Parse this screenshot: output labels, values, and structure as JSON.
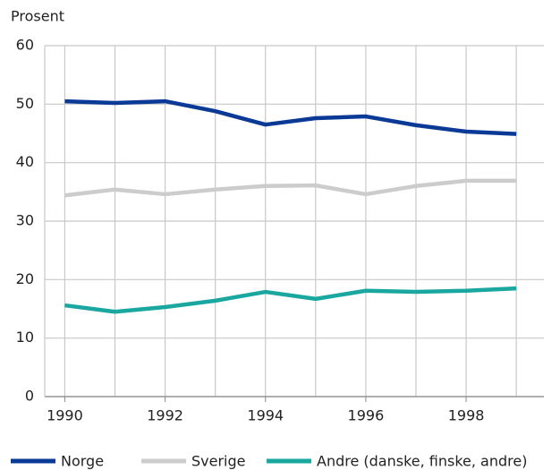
{
  "chart_data": {
    "type": "line",
    "y_axis_label": "Prosent",
    "x": [
      1990,
      1991,
      1992,
      1993,
      1994,
      1995,
      1996,
      1997,
      1998,
      1999
    ],
    "series": [
      {
        "name": "Norge",
        "color": "#0a3a96",
        "values": [
          50.5,
          50.2,
          50.5,
          48.8,
          46.5,
          47.6,
          47.9,
          46.4,
          45.3,
          44.9
        ]
      },
      {
        "name": "Sverige",
        "color": "#cccccc",
        "values": [
          34.4,
          35.4,
          34.6,
          35.4,
          36.0,
          36.1,
          34.6,
          36.0,
          36.9,
          36.9
        ]
      },
      {
        "name": "Andre (danske, finske, andre)",
        "color": "#1aa7a0",
        "values": [
          15.6,
          14.5,
          15.3,
          16.4,
          17.9,
          16.7,
          18.1,
          17.9,
          18.1,
          18.5
        ]
      }
    ],
    "xlim": [
      1989.6,
      1999.55
    ],
    "xticks": [
      1990,
      1992,
      1994,
      1996,
      1998
    ],
    "xgrid": [
      1990,
      1991,
      1992,
      1993,
      1994,
      1995,
      1996,
      1997,
      1998,
      1999
    ],
    "ylim": [
      0,
      60
    ],
    "yticks": [
      0,
      10,
      20,
      30,
      40,
      50,
      60
    ],
    "grid": true,
    "legend": "bottom"
  }
}
